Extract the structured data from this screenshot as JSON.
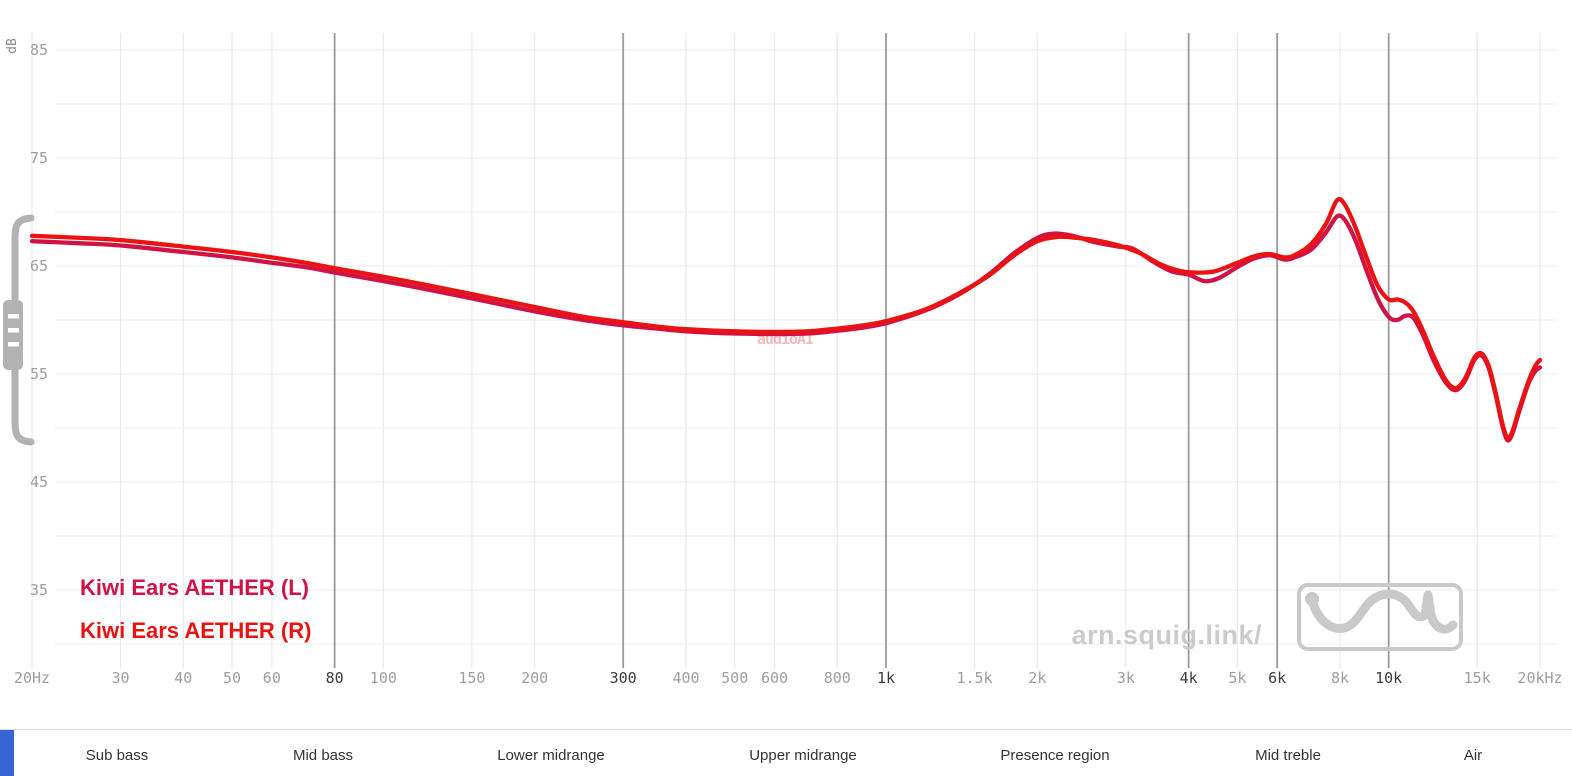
{
  "watermark": {
    "text": "audioAI",
    "color": "#e05a5a"
  },
  "branding": {
    "site_label": "arn.squig.link/"
  },
  "regions": {
    "labels": [
      "Sub bass",
      "Mid bass",
      "Lower midrange",
      "Upper midrange",
      "Presence region",
      "Mid treble",
      "Air"
    ]
  },
  "chart_data": {
    "type": "line",
    "title": "",
    "grid": true,
    "legend_position": "bottom-left",
    "colors": {
      "h_grid": "#f0f0f0",
      "minor_grid": "#eaeaea",
      "major_grid": "#9b9b9b",
      "label_minor": "#9e9e9e",
      "label_major": "#3c3c3c",
      "icon_gray": "#b2b2b2",
      "logo_gray": "#c9c9c9",
      "accent_blue": "#3865d6"
    },
    "y_axis": {
      "label": "dB",
      "min": 30,
      "max": 85,
      "grid_step": 5,
      "labeled": [
        85,
        75,
        65,
        55,
        45,
        35
      ]
    },
    "x_axis": {
      "scale": "log",
      "min": 20,
      "max": 20000,
      "ticks": [
        {
          "f": 20,
          "label": "20Hz",
          "major": false
        },
        {
          "f": 30,
          "label": "30",
          "major": false
        },
        {
          "f": 40,
          "label": "40",
          "major": false
        },
        {
          "f": 50,
          "label": "50",
          "major": false
        },
        {
          "f": 60,
          "label": "60",
          "major": false
        },
        {
          "f": 80,
          "label": "80",
          "major": true
        },
        {
          "f": 100,
          "label": "100",
          "major": false
        },
        {
          "f": 150,
          "label": "150",
          "major": false
        },
        {
          "f": 200,
          "label": "200",
          "major": false
        },
        {
          "f": 300,
          "label": "300",
          "major": true
        },
        {
          "f": 400,
          "label": "400",
          "major": false
        },
        {
          "f": 500,
          "label": "500",
          "major": false
        },
        {
          "f": 600,
          "label": "600",
          "major": false
        },
        {
          "f": 800,
          "label": "800",
          "major": false
        },
        {
          "f": 1000,
          "label": "1k",
          "major": true
        },
        {
          "f": 1500,
          "label": "1.5k",
          "major": false
        },
        {
          "f": 2000,
          "label": "2k",
          "major": false
        },
        {
          "f": 3000,
          "label": "3k",
          "major": false
        },
        {
          "f": 4000,
          "label": "4k",
          "major": true
        },
        {
          "f": 5000,
          "label": "5k",
          "major": false
        },
        {
          "f": 6000,
          "label": "6k",
          "major": true
        },
        {
          "f": 8000,
          "label": "8k",
          "major": false
        },
        {
          "f": 10000,
          "label": "10k",
          "major": true
        },
        {
          "f": 15000,
          "label": "15k",
          "major": false
        },
        {
          "f": 20000,
          "label": "20kHz",
          "major": false
        }
      ]
    },
    "series": [
      {
        "name": "Kiwi Ears AETHER (L)",
        "color": "#d11245",
        "points": [
          [
            20,
            67.3
          ],
          [
            25,
            67.1
          ],
          [
            30,
            66.9
          ],
          [
            40,
            66.3
          ],
          [
            50,
            65.8
          ],
          [
            60,
            65.3
          ],
          [
            70,
            64.9
          ],
          [
            80,
            64.4
          ],
          [
            100,
            63.6
          ],
          [
            120,
            62.9
          ],
          [
            150,
            62.0
          ],
          [
            200,
            60.8
          ],
          [
            250,
            60.0
          ],
          [
            300,
            59.5
          ],
          [
            350,
            59.2
          ],
          [
            400,
            58.95
          ],
          [
            500,
            58.75
          ],
          [
            600,
            58.7
          ],
          [
            700,
            58.75
          ],
          [
            800,
            59.0
          ],
          [
            900,
            59.3
          ],
          [
            1000,
            59.7
          ],
          [
            1200,
            60.9
          ],
          [
            1400,
            62.4
          ],
          [
            1600,
            64.2
          ],
          [
            1800,
            66.2
          ],
          [
            2000,
            67.6
          ],
          [
            2150,
            68.0
          ],
          [
            2350,
            67.8
          ],
          [
            2600,
            67.2
          ],
          [
            2900,
            66.8
          ],
          [
            3100,
            66.6
          ],
          [
            3400,
            65.4
          ],
          [
            3700,
            64.5
          ],
          [
            4000,
            64.2
          ],
          [
            4300,
            63.6
          ],
          [
            4600,
            63.9
          ],
          [
            5000,
            64.9
          ],
          [
            5400,
            65.7
          ],
          [
            5800,
            66.0
          ],
          [
            6200,
            65.6
          ],
          [
            6500,
            65.8
          ],
          [
            7000,
            66.5
          ],
          [
            7500,
            68.1
          ],
          [
            7900,
            69.6
          ],
          [
            8200,
            69.2
          ],
          [
            8600,
            67.3
          ],
          [
            9000,
            64.8
          ],
          [
            9500,
            62.0
          ],
          [
            10000,
            60.3
          ],
          [
            10400,
            60.0
          ],
          [
            10800,
            60.4
          ],
          [
            11200,
            60.2
          ],
          [
            11700,
            58.6
          ],
          [
            12300,
            56.2
          ],
          [
            13000,
            54.2
          ],
          [
            13600,
            53.5
          ],
          [
            14200,
            54.4
          ],
          [
            14800,
            56.3
          ],
          [
            15300,
            56.7
          ],
          [
            15800,
            55.6
          ],
          [
            16300,
            53.2
          ],
          [
            16800,
            50.4
          ],
          [
            17200,
            48.9
          ],
          [
            17600,
            49.4
          ],
          [
            18200,
            51.6
          ],
          [
            19000,
            54.2
          ],
          [
            19600,
            55.3
          ],
          [
            20000,
            55.6
          ]
        ]
      },
      {
        "name": "Kiwi Ears AETHER (R)",
        "color": "#ea1212",
        "points": [
          [
            20,
            67.8
          ],
          [
            25,
            67.6
          ],
          [
            30,
            67.4
          ],
          [
            40,
            66.8
          ],
          [
            50,
            66.3
          ],
          [
            60,
            65.8
          ],
          [
            70,
            65.3
          ],
          [
            80,
            64.8
          ],
          [
            100,
            64.0
          ],
          [
            120,
            63.3
          ],
          [
            150,
            62.4
          ],
          [
            200,
            61.2
          ],
          [
            250,
            60.3
          ],
          [
            300,
            59.8
          ],
          [
            350,
            59.4
          ],
          [
            400,
            59.15
          ],
          [
            500,
            58.95
          ],
          [
            600,
            58.9
          ],
          [
            700,
            58.95
          ],
          [
            800,
            59.2
          ],
          [
            900,
            59.5
          ],
          [
            1000,
            59.9
          ],
          [
            1200,
            61.0
          ],
          [
            1400,
            62.5
          ],
          [
            1600,
            64.1
          ],
          [
            1800,
            66.0
          ],
          [
            2000,
            67.3
          ],
          [
            2200,
            67.7
          ],
          [
            2400,
            67.6
          ],
          [
            2600,
            67.4
          ],
          [
            2900,
            66.9
          ],
          [
            3200,
            66.2
          ],
          [
            3500,
            65.2
          ],
          [
            3800,
            64.6
          ],
          [
            4100,
            64.4
          ],
          [
            4500,
            64.5
          ],
          [
            5000,
            65.3
          ],
          [
            5400,
            65.9
          ],
          [
            5800,
            66.1
          ],
          [
            6200,
            65.8
          ],
          [
            6500,
            66.0
          ],
          [
            7000,
            67.0
          ],
          [
            7500,
            68.9
          ],
          [
            7900,
            71.1
          ],
          [
            8200,
            70.6
          ],
          [
            8600,
            68.5
          ],
          [
            9000,
            66.0
          ],
          [
            9500,
            63.2
          ],
          [
            10000,
            61.9
          ],
          [
            10400,
            61.9
          ],
          [
            10800,
            61.6
          ],
          [
            11200,
            60.8
          ],
          [
            11700,
            59.0
          ],
          [
            12300,
            56.6
          ],
          [
            13000,
            54.4
          ],
          [
            13600,
            53.7
          ],
          [
            14200,
            54.6
          ],
          [
            14800,
            56.5
          ],
          [
            15300,
            56.9
          ],
          [
            15800,
            55.8
          ],
          [
            16300,
            53.4
          ],
          [
            16800,
            50.6
          ],
          [
            17200,
            49.1
          ],
          [
            17600,
            49.6
          ],
          [
            18200,
            51.8
          ],
          [
            19000,
            54.4
          ],
          [
            19600,
            55.8
          ],
          [
            20000,
            56.3
          ]
        ]
      }
    ]
  }
}
